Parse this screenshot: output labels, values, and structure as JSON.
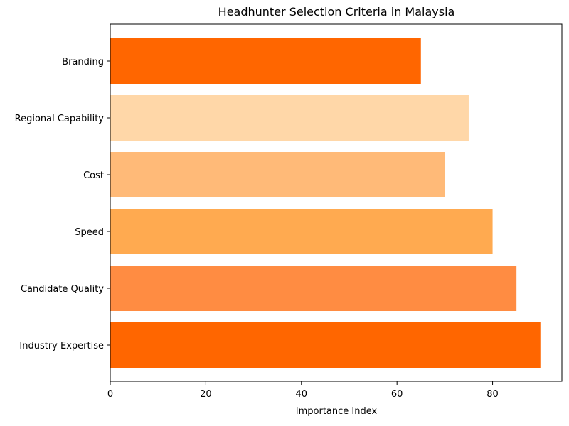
{
  "chart_data": {
    "type": "bar",
    "orientation": "horizontal",
    "title": "Headhunter Selection Criteria in Malaysia",
    "xlabel": "Importance Index",
    "ylabel": "",
    "categories": [
      "Industry Expertise",
      "Candidate Quality",
      "Speed",
      "Cost",
      "Regional Capability",
      "Branding"
    ],
    "values": [
      90,
      85,
      80,
      70,
      75,
      65
    ],
    "colors": [
      "#ff6600",
      "#ff8c42",
      "#ffaa50",
      "#ffba78",
      "#ffd7a8",
      "#ff6600"
    ],
    "xlim": [
      0,
      94.5
    ],
    "xticks": [
      0,
      20,
      40,
      60,
      80
    ],
    "grid": false,
    "legend": "none"
  }
}
